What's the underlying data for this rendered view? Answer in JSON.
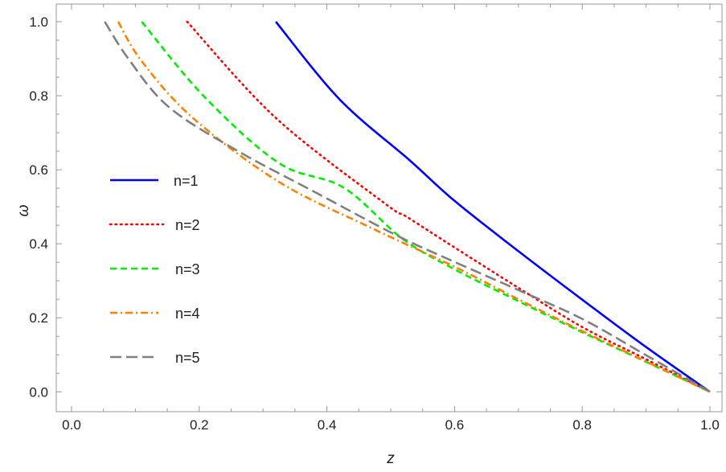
{
  "chart_data": {
    "type": "line",
    "title": "",
    "xlabel": "z",
    "ylabel": "ω",
    "xlim": [
      0,
      1
    ],
    "ylim": [
      0,
      1
    ],
    "xticks": [
      "0.0",
      "0.2",
      "0.4",
      "0.6",
      "0.8",
      "1.0"
    ],
    "yticks": [
      "0.0",
      "0.2",
      "0.4",
      "0.6",
      "0.8",
      "1.0"
    ],
    "grid": false,
    "legend_placement": "left-middle",
    "series": [
      {
        "name": "n=1",
        "color": "#0000ff",
        "style": "solid",
        "x": [
          0.32,
          0.42,
          0.53,
          0.6,
          0.7,
          0.8,
          0.9,
          1.0
        ],
        "y": [
          1.0,
          0.79,
          0.625,
          0.516,
          0.38,
          0.249,
          0.121,
          0.0
        ]
      },
      {
        "name": "n=2",
        "color": "#ff0000",
        "style": "dotted",
        "x": [
          0.181,
          0.32,
          0.49,
          0.526,
          0.6,
          0.7,
          0.8,
          0.9,
          1.0
        ],
        "y": [
          1.0,
          0.74,
          0.51,
          0.472,
          0.39,
          0.281,
          0.175,
          0.088,
          0.0
        ]
      },
      {
        "name": "n=3",
        "color": "#00ee00",
        "style": "dashed",
        "x": [
          0.11,
          0.207,
          0.325,
          0.426,
          0.518,
          0.6,
          0.7,
          0.8,
          0.9,
          1.0
        ],
        "y": [
          1.0,
          0.799,
          0.618,
          0.552,
          0.414,
          0.331,
          0.245,
          0.161,
          0.081,
          0.0
        ]
      },
      {
        "name": "n=4",
        "color": "#ff8000",
        "style": "dashdot",
        "x": [
          0.073,
          0.11,
          0.19,
          0.325,
          0.468,
          0.6,
          0.7,
          0.8,
          0.9,
          1.0
        ],
        "y": [
          1.0,
          0.893,
          0.74,
          0.567,
          0.444,
          0.338,
          0.25,
          0.164,
          0.082,
          0.0
        ]
      },
      {
        "name": "n=5",
        "color": "#808080",
        "style": "longdash",
        "x": [
          0.052,
          0.089,
          0.152,
          0.258,
          0.383,
          0.51,
          0.6,
          0.7,
          0.8,
          0.9,
          1.0
        ],
        "y": [
          1.0,
          0.9,
          0.77,
          0.653,
          0.538,
          0.422,
          0.351,
          0.275,
          0.197,
          0.099,
          0.0
        ]
      }
    ]
  }
}
